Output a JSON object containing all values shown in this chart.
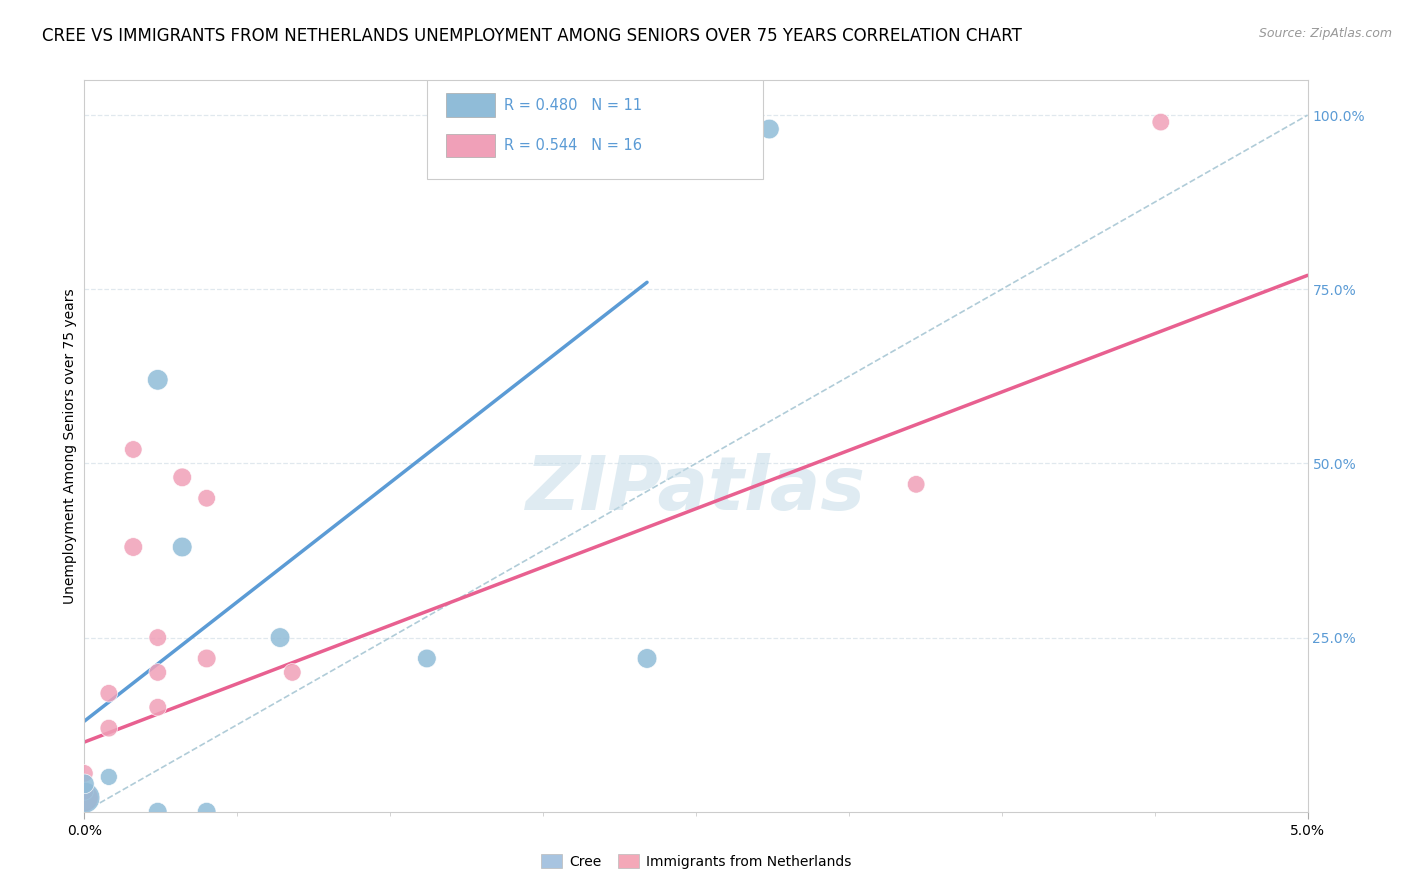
{
  "title": "CREE VS IMMIGRANTS FROM NETHERLANDS UNEMPLOYMENT AMONG SENIORS OVER 75 YEARS CORRELATION CHART",
  "source": "Source: ZipAtlas.com",
  "ylabel": "Unemployment Among Seniors over 75 years",
  "watermark": "ZIPatlas",
  "legend_entries": [
    {
      "label": "R = 0.480   N = 11",
      "color": "#a8c4e0"
    },
    {
      "label": "R = 0.544   N = 16",
      "color": "#f4a8b8"
    }
  ],
  "legend_bottom": [
    {
      "label": "Cree",
      "color": "#a8c4e0"
    },
    {
      "label": "Immigrants from Netherlands",
      "color": "#f4a8b8"
    }
  ],
  "cree_points": [
    [
      0.0,
      0.02
    ],
    [
      0.0,
      0.04
    ],
    [
      0.001,
      0.05
    ],
    [
      0.003,
      0.62
    ],
    [
      0.004,
      0.38
    ],
    [
      0.005,
      0.0
    ],
    [
      0.008,
      0.25
    ],
    [
      0.014,
      0.22
    ],
    [
      0.023,
      0.22
    ],
    [
      0.028,
      0.98
    ],
    [
      0.003,
      0.0
    ]
  ],
  "cree_sizes": [
    500,
    200,
    150,
    220,
    200,
    180,
    200,
    180,
    200,
    200,
    180
  ],
  "netherlands_points": [
    [
      0.0,
      0.02
    ],
    [
      0.0,
      0.03
    ],
    [
      0.0,
      0.055
    ],
    [
      0.001,
      0.12
    ],
    [
      0.001,
      0.17
    ],
    [
      0.002,
      0.38
    ],
    [
      0.002,
      0.52
    ],
    [
      0.003,
      0.2
    ],
    [
      0.003,
      0.25
    ],
    [
      0.003,
      0.15
    ],
    [
      0.004,
      0.48
    ],
    [
      0.005,
      0.22
    ],
    [
      0.005,
      0.45
    ],
    [
      0.0085,
      0.2
    ],
    [
      0.034,
      0.47
    ],
    [
      0.044,
      0.99
    ]
  ],
  "netherlands_sizes": [
    400,
    180,
    160,
    160,
    160,
    180,
    160,
    160,
    160,
    160,
    180,
    180,
    160,
    160,
    160,
    160
  ],
  "cree_line_x": [
    0.0,
    0.023
  ],
  "cree_line_y": [
    0.13,
    0.76
  ],
  "netherlands_line_x": [
    0.0,
    0.05
  ],
  "netherlands_line_y": [
    0.1,
    0.77
  ],
  "identity_line_x": [
    0.0,
    0.05
  ],
  "identity_line_y": [
    0.0,
    1.0
  ],
  "xmin": 0.0,
  "xmax": 0.05,
  "ymin": 0.0,
  "ymax": 1.05,
  "cree_color": "#90bcd8",
  "netherlands_color": "#f0a0b8",
  "cree_line_color": "#5b9bd5",
  "netherlands_line_color": "#e86090",
  "identity_line_color": "#b0ccd8",
  "grid_color": "#e0e8ee",
  "title_fontsize": 12,
  "axis_label_fontsize": 10,
  "tick_fontsize": 10,
  "source_fontsize": 9
}
